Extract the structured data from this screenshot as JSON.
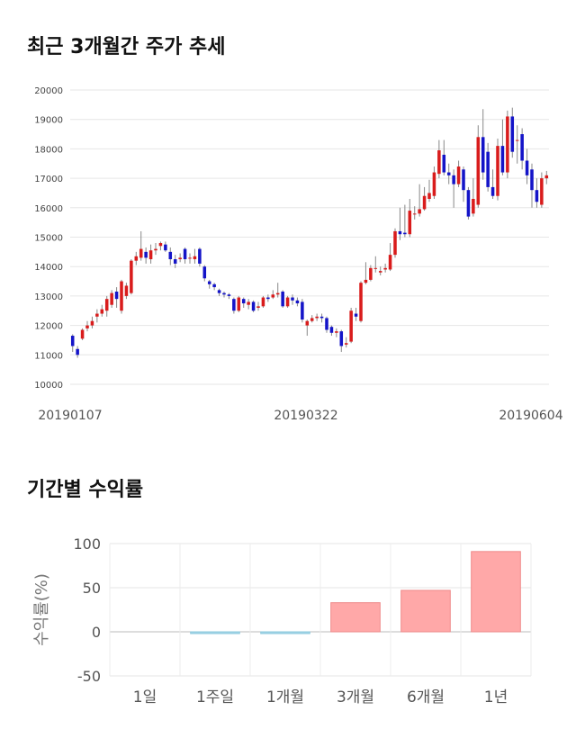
{
  "sections": {
    "price_title": "최근 3개월간 주가 추세",
    "return_title": "기간별 수익률"
  },
  "colors": {
    "up": "#d91c1c",
    "down": "#1414c8",
    "wick": "#888888",
    "positive_bar": "#ffa8a8",
    "negative_bar": "#9fd6e8"
  },
  "chart_data": [
    {
      "type": "candlestick",
      "title": "",
      "xlabel": "",
      "ylabel": "",
      "ylim": [
        10000,
        20000
      ],
      "yticks": [
        10000,
        11000,
        12000,
        13000,
        14000,
        15000,
        16000,
        17000,
        18000,
        19000,
        20000
      ],
      "xtick_labels": [
        "20190107",
        "20190322",
        "20190604"
      ],
      "grid": true,
      "candles": [
        [
          11650,
          11300,
          11700,
          11100
        ],
        [
          11200,
          11000,
          11300,
          10900
        ],
        [
          11550,
          11850,
          11900,
          11500
        ],
        [
          11900,
          12000,
          12150,
          11800
        ],
        [
          12000,
          12150,
          12300,
          11900
        ],
        [
          12300,
          12400,
          12550,
          12100
        ],
        [
          12400,
          12550,
          12700,
          12300
        ],
        [
          12500,
          12900,
          13000,
          12300
        ],
        [
          12700,
          13100,
          13200,
          12600
        ],
        [
          13150,
          12900,
          13300,
          12600
        ],
        [
          12500,
          13500,
          13550,
          12400
        ],
        [
          13000,
          13350,
          13450,
          12900
        ],
        [
          13100,
          14200,
          14250,
          13050
        ],
        [
          14200,
          14350,
          14500,
          14050
        ],
        [
          14300,
          14600,
          15200,
          14200
        ],
        [
          14500,
          14300,
          14650,
          14100
        ],
        [
          14250,
          14550,
          14750,
          14100
        ],
        [
          14550,
          14600,
          14800,
          14400
        ],
        [
          14700,
          14800,
          14850,
          14550
        ],
        [
          14750,
          14550,
          14850,
          14500
        ],
        [
          14500,
          14250,
          14650,
          14050
        ],
        [
          14250,
          14100,
          14400,
          13950
        ],
        [
          14250,
          14300,
          14450,
          14150
        ],
        [
          14600,
          14250,
          14650,
          14100
        ],
        [
          14300,
          14300,
          14450,
          14100
        ],
        [
          14250,
          14350,
          14600,
          14100
        ],
        [
          14600,
          14100,
          14650,
          14000
        ],
        [
          14000,
          13600,
          14050,
          13500
        ],
        [
          13500,
          13400,
          13550,
          13250
        ],
        [
          13400,
          13300,
          13450,
          13200
        ],
        [
          13200,
          13100,
          13250,
          13000
        ],
        [
          13100,
          13050,
          13150,
          12950
        ],
        [
          13050,
          13000,
          13100,
          12900
        ],
        [
          12900,
          12500,
          12950,
          12400
        ],
        [
          12500,
          12950,
          13000,
          12450
        ],
        [
          12900,
          12750,
          12950,
          12600
        ],
        [
          12700,
          12800,
          12900,
          12550
        ],
        [
          12800,
          12500,
          12850,
          12450
        ],
        [
          12600,
          12650,
          12800,
          12500
        ],
        [
          12650,
          12950,
          13000,
          12600
        ],
        [
          12950,
          12900,
          13050,
          12800
        ],
        [
          12950,
          13050,
          13200,
          12900
        ],
        [
          13050,
          13100,
          13450,
          12950
        ],
        [
          13150,
          12650,
          13200,
          12600
        ],
        [
          12650,
          12950,
          13000,
          12600
        ],
        [
          12950,
          12850,
          13050,
          12700
        ],
        [
          12850,
          12750,
          12950,
          12650
        ],
        [
          12800,
          12200,
          12900,
          12100
        ],
        [
          12000,
          12150,
          12200,
          11650
        ],
        [
          12150,
          12250,
          12350,
          12100
        ],
        [
          12250,
          12300,
          12400,
          12150
        ],
        [
          12300,
          12250,
          12400,
          12100
        ],
        [
          12250,
          11850,
          12300,
          11750
        ],
        [
          11950,
          11750,
          12000,
          11650
        ],
        [
          11750,
          11800,
          11900,
          11600
        ],
        [
          11800,
          11300,
          11850,
          11100
        ],
        [
          11350,
          11400,
          11600,
          11250
        ],
        [
          11450,
          12500,
          12600,
          11400
        ],
        [
          12400,
          12300,
          12600,
          12150
        ],
        [
          12150,
          13450,
          13500,
          12100
        ],
        [
          13450,
          13550,
          14150,
          13400
        ],
        [
          13550,
          13950,
          14050,
          13500
        ],
        [
          13950,
          13950,
          14350,
          13800
        ],
        [
          13800,
          13850,
          14000,
          13700
        ],
        [
          13900,
          13950,
          14100,
          13800
        ],
        [
          13900,
          14400,
          14800,
          13850
        ],
        [
          14400,
          15200,
          15300,
          14300
        ],
        [
          15200,
          15100,
          16000,
          14900
        ],
        [
          15150,
          15100,
          16100,
          15000
        ],
        [
          15100,
          15900,
          16300,
          15000
        ],
        [
          15800,
          15800,
          16050,
          15600
        ],
        [
          15800,
          15950,
          16800,
          15700
        ],
        [
          15950,
          16400,
          16700,
          15900
        ],
        [
          16300,
          16500,
          16950,
          16200
        ],
        [
          16400,
          17200,
          17400,
          16300
        ],
        [
          17150,
          17950,
          18300,
          17000
        ],
        [
          17800,
          17200,
          18300,
          17100
        ],
        [
          17200,
          17100,
          17500,
          16800
        ],
        [
          17100,
          16800,
          17300,
          16000
        ],
        [
          16800,
          17400,
          17600,
          16700
        ],
        [
          17300,
          16600,
          17400,
          16200
        ],
        [
          16600,
          15700,
          16700,
          15600
        ],
        [
          15800,
          16300,
          17000,
          15700
        ],
        [
          16100,
          18400,
          18800,
          16000
        ],
        [
          18400,
          17200,
          19350,
          16950
        ],
        [
          17900,
          16700,
          18200,
          16550
        ],
        [
          16700,
          16400,
          17300,
          16300
        ],
        [
          16400,
          18100,
          18350,
          16250
        ],
        [
          18100,
          17200,
          19000,
          17100
        ],
        [
          17200,
          19100,
          19300,
          17000
        ],
        [
          19100,
          17900,
          19400,
          17700
        ],
        [
          18300,
          18300,
          18800,
          17500
        ],
        [
          18500,
          17600,
          18700,
          17300
        ],
        [
          17600,
          17100,
          18000,
          16800
        ],
        [
          17300,
          16600,
          17500,
          16000
        ],
        [
          16600,
          16200,
          17000,
          16000
        ],
        [
          16100,
          17000,
          17200,
          16000
        ],
        [
          17000,
          17100,
          17250,
          16800
        ]
      ]
    },
    {
      "type": "bar",
      "title": "",
      "xlabel": "",
      "ylabel": "수익률(%)",
      "ylim": [
        -50,
        100
      ],
      "yticks": [
        100,
        50,
        0,
        -50
      ],
      "categories": [
        "1일",
        "1주일",
        "1개월",
        "3개월",
        "6개월",
        "1년"
      ],
      "values": [
        0,
        -1,
        -2,
        33,
        47,
        91
      ],
      "grid": true
    }
  ]
}
